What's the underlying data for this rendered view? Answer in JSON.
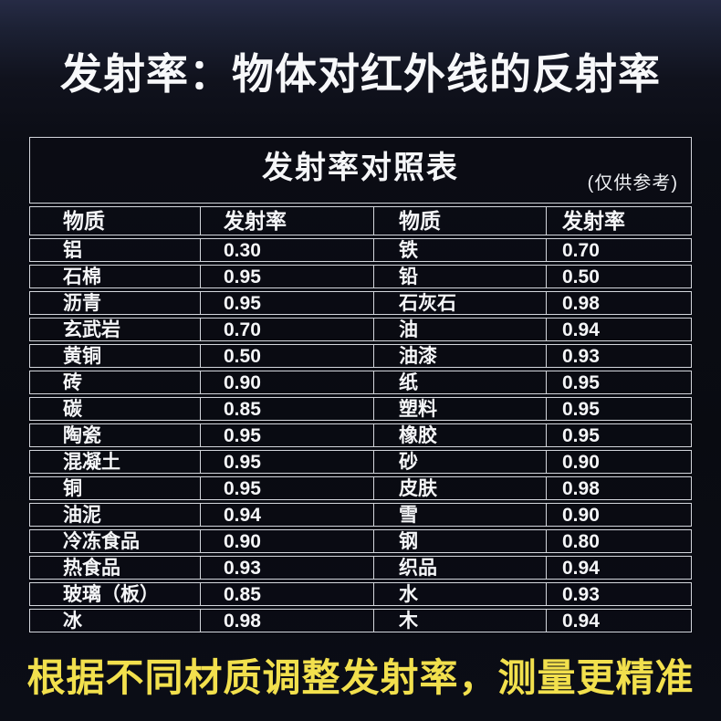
{
  "header": {
    "title": "发射率：物体对红外线的反射率"
  },
  "table": {
    "title": "发射率对照表",
    "note": "(仅供参考)",
    "headers": [
      "物质",
      "发射率",
      "物质",
      "发射率"
    ]
  },
  "chart_data": {
    "type": "table",
    "title": "发射率对照表",
    "subtitle": "(仅供参考)",
    "columns": [
      "物质",
      "发射率",
      "物质",
      "发射率"
    ],
    "rows": [
      [
        "铝",
        "0.30",
        "铁",
        "0.70"
      ],
      [
        "石棉",
        "0.95",
        "铅",
        "0.50"
      ],
      [
        "沥青",
        "0.95",
        "石灰石",
        "0.98"
      ],
      [
        "玄武岩",
        "0.70",
        "油",
        "0.94"
      ],
      [
        "黄铜",
        "0.50",
        "油漆",
        "0.93"
      ],
      [
        "砖",
        "0.90",
        "纸",
        "0.95"
      ],
      [
        "碳",
        "0.85",
        "塑料",
        "0.95"
      ],
      [
        "陶瓷",
        "0.95",
        "橡胶",
        "0.95"
      ],
      [
        "混凝土",
        "0.95",
        "砂",
        "0.90"
      ],
      [
        "铜",
        "0.95",
        "皮肤",
        "0.98"
      ],
      [
        "油泥",
        "0.94",
        "雪",
        "0.90"
      ],
      [
        "冷冻食品",
        "0.90",
        "钢",
        "0.80"
      ],
      [
        "热食品",
        "0.93",
        "织品",
        "0.94"
      ],
      [
        "玻璃（板）",
        "0.85",
        "水",
        "0.93"
      ],
      [
        "冰",
        "0.98",
        "木",
        "0.94"
      ]
    ]
  },
  "footer": {
    "slogan": "根据不同材质调整发射率，测量更精准"
  },
  "colors": {
    "background_top": "#262b45",
    "background": "#0a0c13",
    "border": "#d3d6dc",
    "text": "#f5f6f8",
    "accent_yellow": "#f2e04d"
  }
}
